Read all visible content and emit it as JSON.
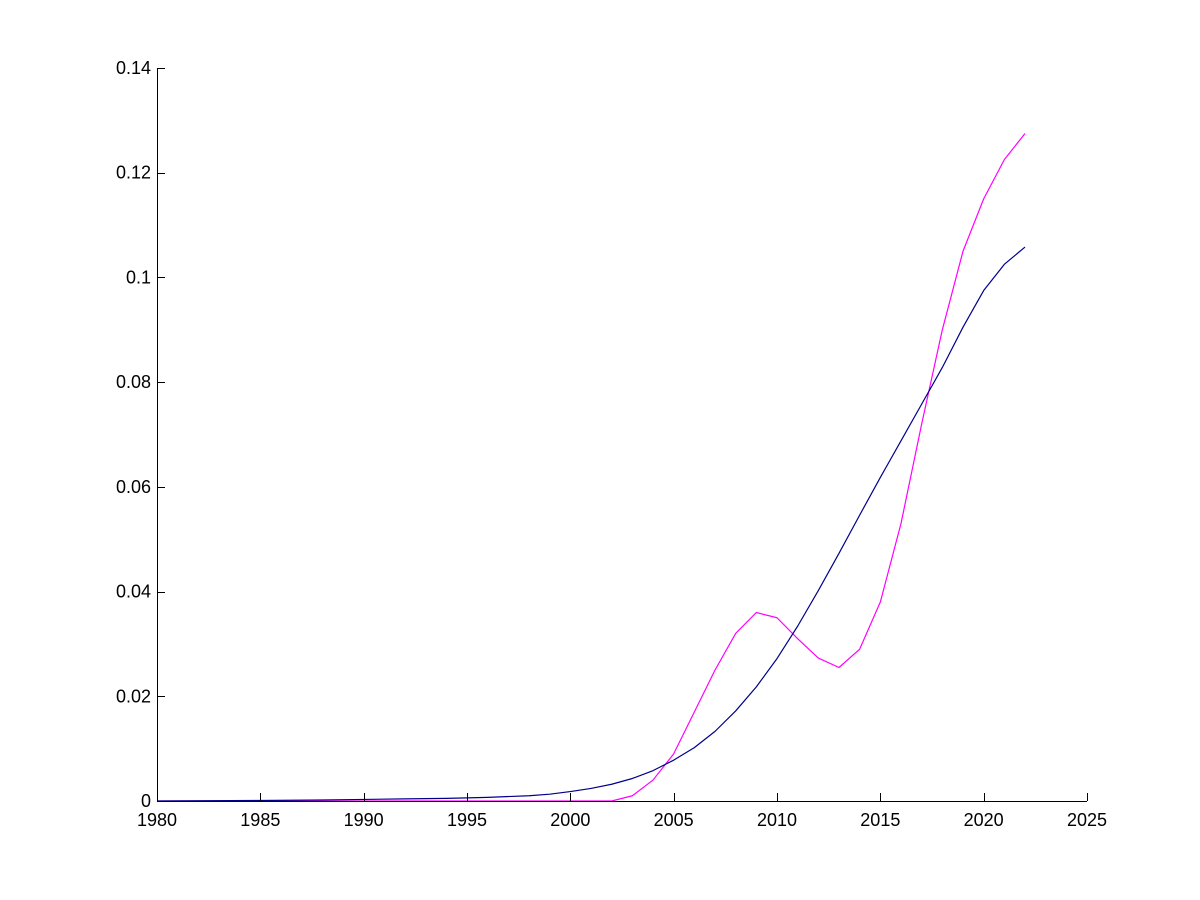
{
  "chart_data": {
    "type": "line",
    "title": "",
    "xlabel": "",
    "ylabel": "",
    "xlim": [
      1980,
      2025
    ],
    "ylim": [
      0,
      0.14
    ],
    "x_ticks": [
      1980,
      1985,
      1990,
      1995,
      2000,
      2005,
      2010,
      2015,
      2020,
      2025
    ],
    "x_tick_labels": [
      "1980",
      "1985",
      "1990",
      "1995",
      "2000",
      "2005",
      "2010",
      "2015",
      "2020",
      "2025"
    ],
    "y_ticks": [
      0,
      0.02,
      0.04,
      0.06,
      0.08,
      0.1,
      0.12,
      0.14
    ],
    "y_tick_labels": [
      "0",
      "0.02",
      "0.04",
      "0.06",
      "0.08",
      "0.1",
      "0.12",
      "0.14"
    ],
    "grid": false,
    "legend": "none",
    "series": [
      {
        "color": "#ff00ff",
        "x": [
          1980,
          1985,
          1990,
          1995,
          2000,
          2002,
          2003,
          2004,
          2005,
          2006,
          2007,
          2008,
          2009,
          2010,
          2011,
          2012,
          2013,
          2014,
          2015,
          2016,
          2017,
          2018,
          2019,
          2020,
          2021,
          2022
        ],
        "y": [
          0,
          0,
          0,
          0,
          0,
          0,
          0.001,
          0.004,
          0.009,
          0.017,
          0.025,
          0.032,
          0.036,
          0.035,
          0.031,
          0.0273,
          0.0255,
          0.029,
          0.038,
          0.053,
          0.072,
          0.09,
          0.105,
          0.115,
          0.1225,
          0.1275
        ]
      },
      {
        "color": "#00008b",
        "x": [
          1980,
          1985,
          1988,
          1990,
          1992,
          1994,
          1996,
          1998,
          1999,
          2000,
          2001,
          2002,
          2003,
          2004,
          2005,
          2006,
          2007,
          2008,
          2009,
          2010,
          2011,
          2012,
          2013,
          2014,
          2015,
          2016,
          2017,
          2018,
          2019,
          2020,
          2021,
          2022
        ],
        "y": [
          0,
          0.0001,
          0.0002,
          0.0003,
          0.0004,
          0.0005,
          0.0007,
          0.001,
          0.0013,
          0.0018,
          0.0024,
          0.0032,
          0.0043,
          0.0058,
          0.0078,
          0.0102,
          0.0133,
          0.0172,
          0.0218,
          0.0272,
          0.0334,
          0.0402,
          0.0473,
          0.0546,
          0.0618,
          0.0688,
          0.0758,
          0.0828,
          0.0905,
          0.0975,
          0.1025,
          0.1058
        ]
      }
    ]
  }
}
